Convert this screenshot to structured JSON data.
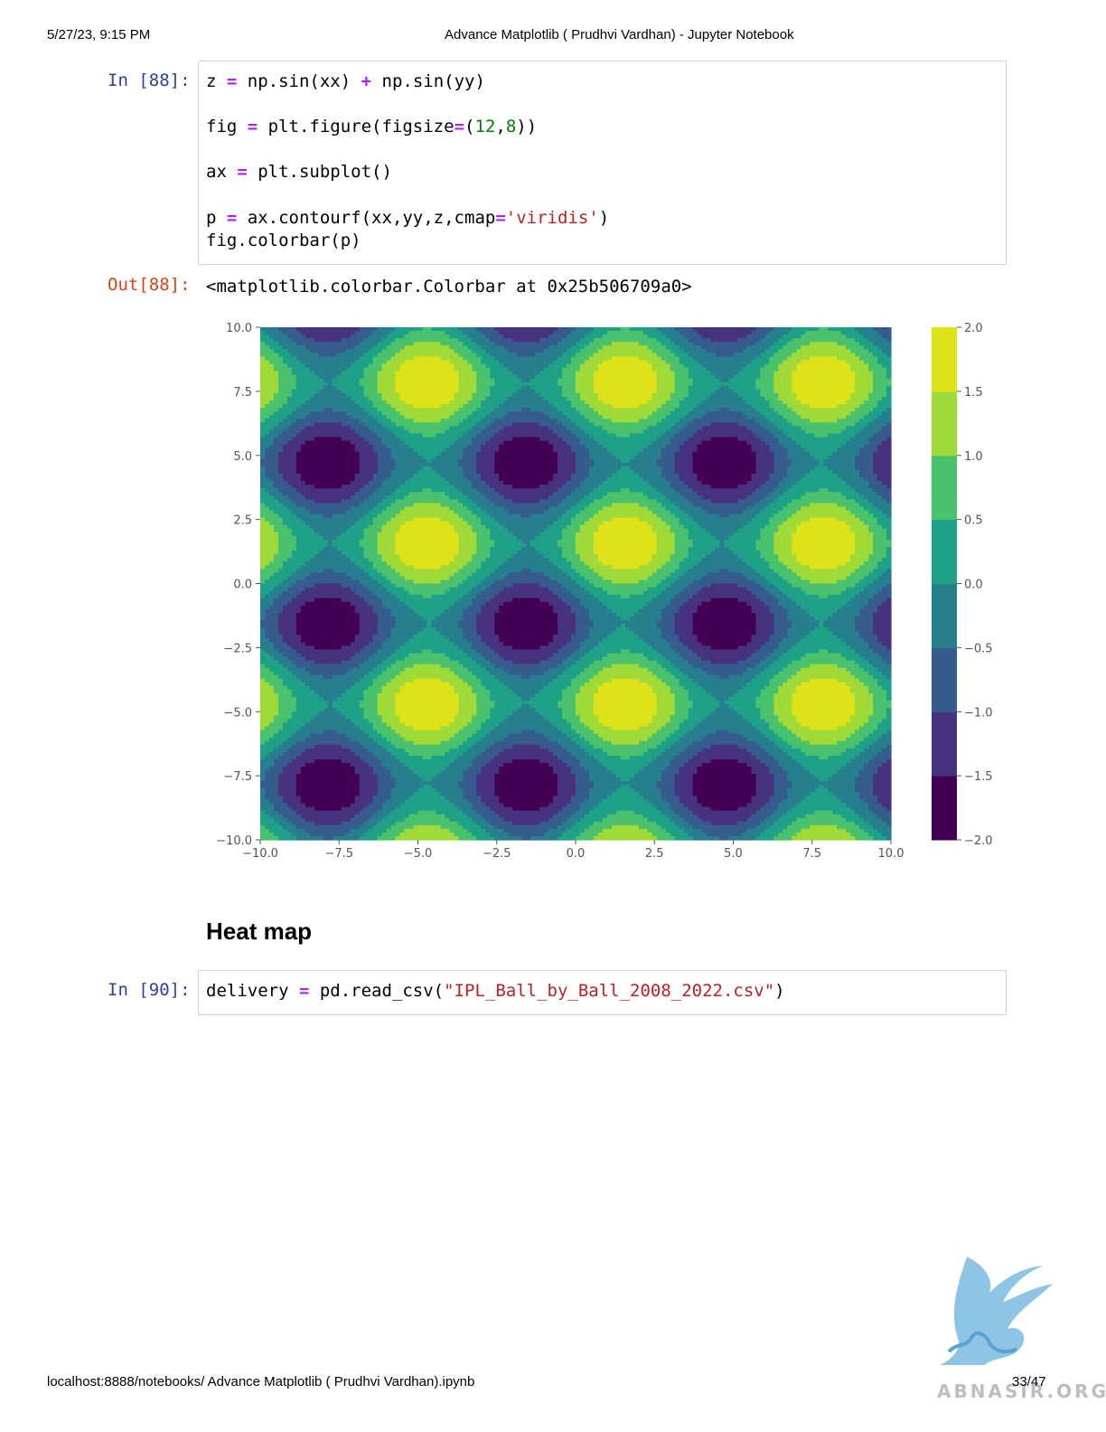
{
  "print_header": {
    "date": "5/27/23, 9:15 PM",
    "title": "Advance Matplotlib ( Prudhvi Vardhan) - Jupyter Notebook"
  },
  "cells": {
    "cell88": {
      "in_prompt": "In [88]:",
      "out_prompt": "Out[88]:",
      "output_text": "<matplotlib.colorbar.Colorbar at 0x25b506709a0>"
    },
    "heading": "Heat map",
    "cell90": {
      "in_prompt": "In [90]:"
    }
  },
  "code": {
    "l1": [
      "z ",
      "=",
      " np.sin(xx) ",
      "+",
      " np.sin(yy)"
    ],
    "l2": [
      "fig ",
      "=",
      " plt.figure(figsize",
      "=",
      "(",
      "12",
      ",",
      "8",
      "))"
    ],
    "l3": [
      "ax ",
      "=",
      " plt.subplot()"
    ],
    "l4": [
      "p ",
      "=",
      " ax.contourf(xx,yy,z,cmap",
      "=",
      "'viridis'",
      ")"
    ],
    "l5": [
      "fig.colorbar(p)"
    ],
    "l6": [
      "delivery ",
      "=",
      " pd.read_csv(",
      "\"IPL_Ball_by_Ball_2008_2022.csv\"",
      ")"
    ]
  },
  "chart_data": {
    "type": "heatmap",
    "subtype": "filled-contour",
    "function": "z = sin(x) + sin(y)",
    "colormap": "viridis",
    "xlim": [
      -10,
      10
    ],
    "ylim": [
      -10,
      10
    ],
    "x_ticks": [
      "−10.0",
      "−7.5",
      "−5.0",
      "−2.5",
      "0.0",
      "2.5",
      "5.0",
      "7.5",
      "10.0"
    ],
    "y_ticks": [
      "10.0",
      "7.5",
      "5.0",
      "2.5",
      "0.0",
      "−2.5",
      "−5.0",
      "−7.5",
      "−10.0"
    ],
    "colorbar": {
      "range": [
        -2,
        2
      ],
      "levels": [
        -2.0,
        -1.5,
        -1.0,
        -0.5,
        0.0,
        0.5,
        1.0,
        1.5,
        2.0
      ],
      "tick_labels": [
        "2.0",
        "1.5",
        "1.0",
        "0.5",
        "0.0",
        "−0.5",
        "−1.0",
        "−1.5",
        "−2.0"
      ],
      "colors": [
        "#440154",
        "#46327e",
        "#365c8d",
        "#277f8e",
        "#1fa187",
        "#4ac16d",
        "#a0da39",
        "#dde318"
      ]
    },
    "grid": false
  },
  "print_footer": {
    "url": "localhost:8888/notebooks/ Advance Matplotlib ( Prudhvi Vardhan).ipynb",
    "pages": "33/47"
  },
  "watermark": {
    "text": "ABNASIR.ORG",
    "icon": "griffin-logo"
  }
}
